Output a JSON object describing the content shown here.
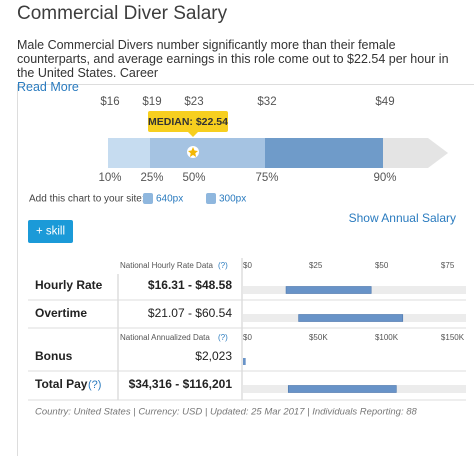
{
  "header": {
    "title": "Commercial Diver Salary",
    "description": "Male Commercial Divers number significantly more than their female counterparts, and average earnings in this role come out to $22.54 per hour in the United States. Career",
    "read_more": "Read More"
  },
  "percentile_chart": {
    "dollars": [
      "$16",
      "$19",
      "$23",
      "$32",
      "$49"
    ],
    "percentiles": [
      "10%",
      "25%",
      "50%",
      "75%",
      "90%"
    ],
    "median": "MEDIAN: $22.54",
    "embed_label": "Add this chart to your site:",
    "embed_sizes": [
      "640px",
      "300px"
    ]
  },
  "controls": {
    "show_annual": "Show Annual Salary",
    "add_skill": "+ skill"
  },
  "hourly": {
    "heading": "National Hourly Rate Data",
    "help": "(?)",
    "xlim": [
      0,
      84.5
    ],
    "ticks": [
      {
        "value": 0,
        "label": "$0"
      },
      {
        "value": 25,
        "label": "$25"
      },
      {
        "value": 50,
        "label": "$50"
      },
      {
        "value": 75,
        "label": "$75"
      }
    ],
    "rows": [
      {
        "label": "Hourly Rate",
        "range": "$16.31 - $48.58",
        "low": 16.31,
        "high": 48.58
      },
      {
        "label": "Overtime",
        "range": "$21.07 - $60.54",
        "low": 21.07,
        "high": 60.54
      }
    ]
  },
  "annual": {
    "heading": "National Annualized Data",
    "help": "(?)",
    "xlim": [
      0,
      169000
    ],
    "ticks": [
      {
        "value": 0,
        "label": "$0"
      },
      {
        "value": 50000,
        "label": "$50K"
      },
      {
        "value": 100000,
        "label": "$100K"
      },
      {
        "value": 150000,
        "label": "$150K"
      }
    ],
    "bonus": {
      "label": "Bonus",
      "text": "$2,023",
      "value": 2023
    },
    "total": {
      "label": "Total Pay",
      "help": "(?)",
      "range": "$34,316 - $116,201",
      "low": 34316,
      "high": 116201
    }
  },
  "footer": "Country: United States | Currency: USD | Updated: 25 Mar 2017 | Individuals Reporting: 88"
}
